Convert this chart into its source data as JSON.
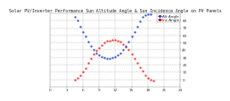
{
  "title": "Solar PV/Inverter Performance Sun Altitude Angle & Sun Incidence Angle on PV Panels",
  "background_color": "#ffffff",
  "plot_bg_color": "#ffffff",
  "grid_color": "#aaaaaa",
  "legend_entries": [
    "Alt Angle",
    "Inc Angle"
  ],
  "legend_colors_text": [
    "#0000cc",
    "#ff0000",
    "#cc0000"
  ],
  "altitude_color": "#ff2222",
  "incidence_color": "#2244cc",
  "ylim": [
    -10,
    90
  ],
  "yticks": [
    0,
    10,
    20,
    30,
    40,
    50,
    60,
    70,
    80
  ],
  "xlim": [
    0,
    24
  ],
  "xticks": [
    0,
    3,
    6,
    9,
    12,
    15,
    18,
    21,
    24
  ],
  "altitude_x": [
    4.5,
    5.0,
    5.5,
    6.0,
    6.5,
    7.0,
    7.5,
    8.0,
    8.5,
    9.0,
    9.5,
    10.0,
    10.5,
    11.0,
    11.5,
    12.0,
    12.5,
    13.0,
    13.5,
    14.0,
    14.5,
    15.0,
    15.5,
    16.0,
    16.5,
    17.0,
    17.5,
    18.0,
    18.5,
    19.0
  ],
  "altitude_y": [
    0,
    2,
    5,
    10,
    15,
    22,
    28,
    34,
    39,
    43,
    47,
    50,
    52,
    53,
    54,
    54,
    53,
    51,
    48,
    44,
    40,
    35,
    29,
    23,
    17,
    11,
    6,
    2,
    0,
    -2
  ],
  "incidence_x": [
    4.5,
    5.0,
    5.5,
    6.0,
    6.5,
    7.0,
    7.5,
    8.0,
    8.5,
    9.0,
    9.5,
    10.0,
    10.5,
    11.0,
    11.5,
    12.0,
    12.5,
    13.0,
    13.5,
    14.0,
    14.5,
    15.0,
    15.5,
    16.0,
    16.5,
    17.0,
    17.5,
    18.0,
    18.5
  ],
  "incidence_y": [
    85,
    80,
    72,
    65,
    58,
    51,
    45,
    40,
    36,
    33,
    31,
    30,
    29,
    29,
    30,
    31,
    33,
    36,
    40,
    45,
    51,
    58,
    65,
    72,
    79,
    85,
    88,
    89,
    89
  ],
  "title_fontsize": 3.5,
  "tick_fontsize": 3,
  "legend_fontsize": 3,
  "marker_size": 1.2
}
